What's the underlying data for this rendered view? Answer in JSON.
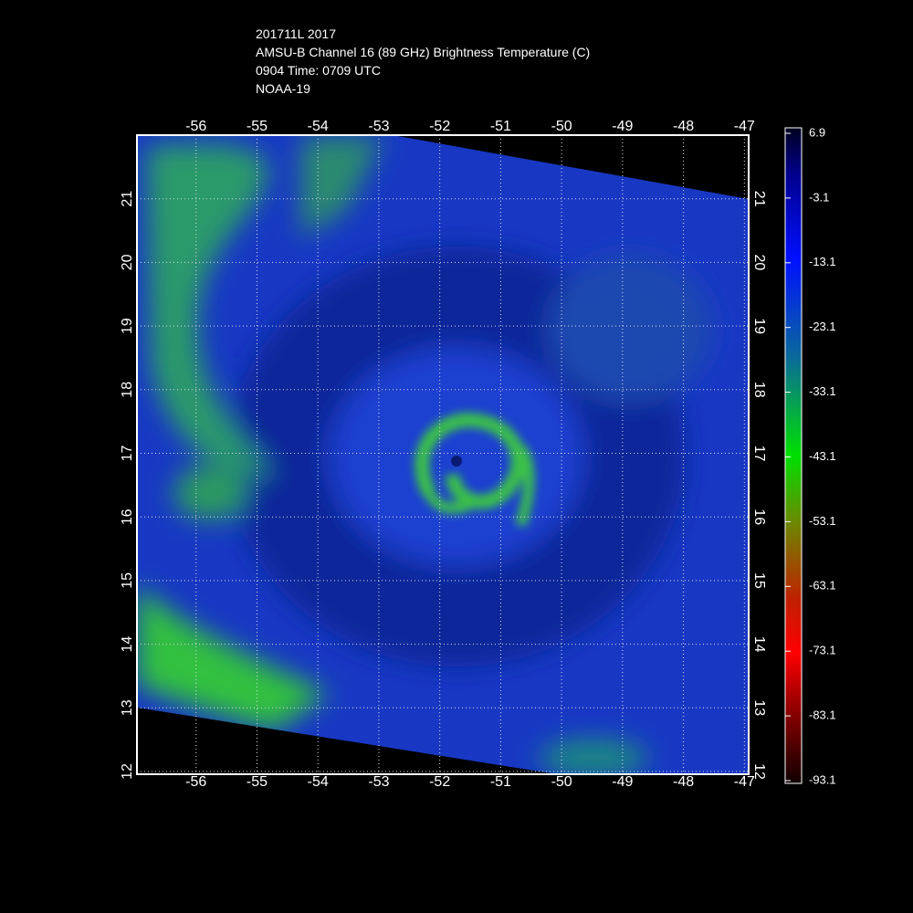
{
  "chart_data": {
    "type": "map",
    "title_lines": [
      "201711L 2017",
      "AMSU-B Channel 16 (89 GHz) Brightness Temperature (C)",
      "0904 Time: 0709 UTC",
      "NOAA-19"
    ],
    "xlim": [
      -57,
      -46.9
    ],
    "ylim": [
      12,
      22
    ],
    "xticks": [
      -56,
      -55,
      -54,
      -53,
      -52,
      -51,
      -50,
      -49,
      -48,
      -47
    ],
    "yticks": [
      12,
      13,
      14,
      15,
      16,
      17,
      18,
      19,
      20,
      21
    ],
    "grid": true,
    "colorbar": {
      "lim": [
        -93.1,
        6.9
      ],
      "ticks": [
        6.9,
        -3.1,
        -13.1,
        -23.1,
        -33.1,
        -43.1,
        -53.1,
        -63.1,
        -73.1,
        -83.1,
        -93.1
      ]
    }
  }
}
